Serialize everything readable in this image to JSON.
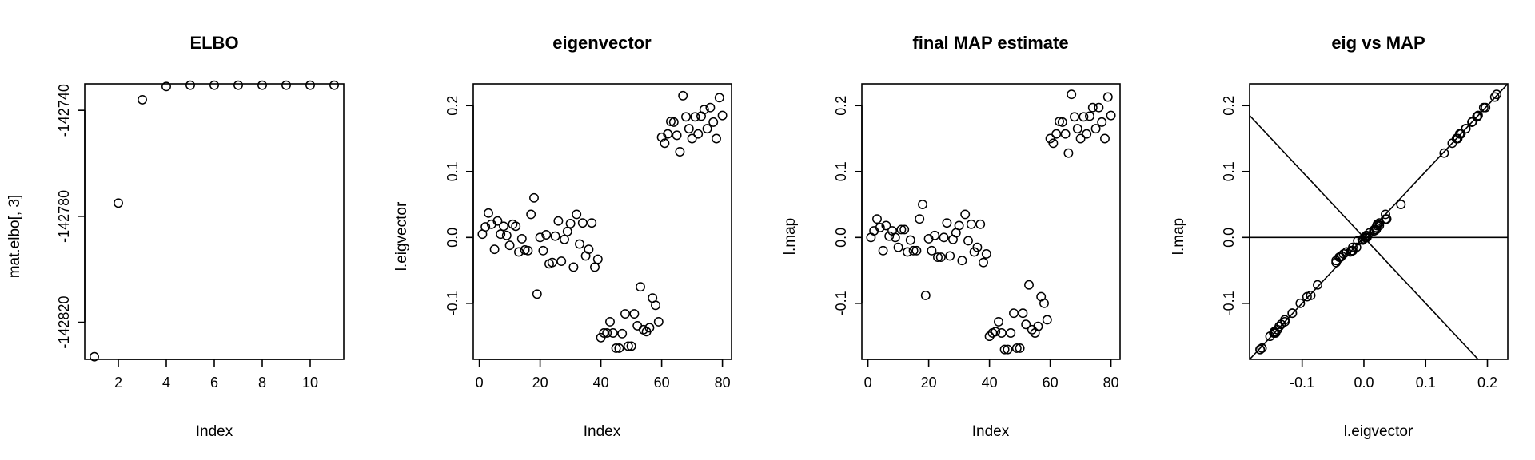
{
  "chart_data": [
    {
      "type": "scatter",
      "title": "ELBO",
      "xlabel": "Index",
      "ylabel": "mat.elbo[, 3]",
      "xlim": [
        0.6,
        11.4
      ],
      "ylim": [
        -142834,
        -142730
      ],
      "xticks": [
        2,
        4,
        6,
        8,
        10
      ],
      "xtick_labels": [
        "2",
        "4",
        "6",
        "8",
        "10"
      ],
      "yticks": [
        -142820,
        -142780,
        -142740
      ],
      "ytick_labels": [
        "-142820",
        "-142780",
        "-142740"
      ],
      "x": [
        1,
        2,
        3,
        4,
        5,
        6,
        7,
        8,
        9,
        10,
        11
      ],
      "y": [
        -142833,
        -142775,
        -142736,
        -142731,
        -142730.5,
        -142730.5,
        -142730.5,
        -142730.5,
        -142730.5,
        -142730.5,
        -142730.5
      ]
    },
    {
      "type": "scatter",
      "title": "eigenvector",
      "xlabel": "Index",
      "ylabel": "l.eigvector",
      "xlim": [
        -2,
        83
      ],
      "ylim": [
        -0.185,
        0.233
      ],
      "xticks": [
        0,
        20,
        40,
        60,
        80
      ],
      "xtick_labels": [
        "0",
        "20",
        "40",
        "60",
        "80"
      ],
      "yticks": [
        -0.1,
        0.0,
        0.1,
        0.2
      ],
      "ytick_labels": [
        "-0.1",
        "0.0",
        "0.1",
        "0.2"
      ],
      "x": [
        1,
        2,
        3,
        4,
        5,
        6,
        7,
        8,
        9,
        10,
        11,
        12,
        13,
        14,
        15,
        16,
        17,
        18,
        19,
        20,
        21,
        22,
        23,
        24,
        25,
        26,
        27,
        28,
        29,
        30,
        31,
        32,
        33,
        34,
        35,
        36,
        37,
        38,
        39,
        40,
        41,
        42,
        43,
        44,
        45,
        46,
        47,
        48,
        49,
        50,
        51,
        52,
        53,
        54,
        55,
        56,
        57,
        58,
        59,
        60,
        61,
        62,
        63,
        64,
        65,
        66,
        67,
        68,
        69,
        70,
        71,
        72,
        73,
        74,
        75,
        76,
        77,
        78,
        79,
        80
      ],
      "y": [
        0.005,
        0.016,
        0.037,
        0.02,
        -0.018,
        0.025,
        0.005,
        0.017,
        0.003,
        -0.012,
        0.02,
        0.017,
        -0.022,
        -0.002,
        -0.019,
        -0.02,
        0.035,
        0.06,
        -0.086,
        0.0,
        -0.02,
        0.004,
        -0.04,
        -0.038,
        0.002,
        0.025,
        -0.036,
        -0.003,
        0.009,
        0.021,
        -0.045,
        0.035,
        -0.01,
        0.022,
        -0.028,
        -0.018,
        0.022,
        -0.045,
        -0.033,
        -0.152,
        -0.145,
        -0.145,
        -0.128,
        -0.145,
        -0.168,
        -0.168,
        -0.146,
        -0.116,
        -0.165,
        -0.165,
        -0.116,
        -0.134,
        -0.075,
        -0.14,
        -0.143,
        -0.137,
        -0.092,
        -0.103,
        -0.128,
        0.152,
        0.143,
        0.157,
        0.176,
        0.175,
        0.155,
        0.13,
        0.215,
        0.183,
        0.165,
        0.15,
        0.183,
        0.157,
        0.184,
        0.194,
        0.165,
        0.197,
        0.175,
        0.15,
        0.212,
        0.185
      ]
    },
    {
      "type": "scatter",
      "title": "final MAP estimate",
      "xlabel": "Index",
      "ylabel": "l.map",
      "xlim": [
        -2,
        83
      ],
      "ylim": [
        -0.185,
        0.233
      ],
      "xticks": [
        0,
        20,
        40,
        60,
        80
      ],
      "xtick_labels": [
        "0",
        "20",
        "40",
        "60",
        "80"
      ],
      "yticks": [
        -0.1,
        0.0,
        0.1,
        0.2
      ],
      "ytick_labels": [
        "-0.1",
        "0.0",
        "0.1",
        "0.2"
      ],
      "x": [
        1,
        2,
        3,
        4,
        5,
        6,
        7,
        8,
        9,
        10,
        11,
        12,
        13,
        14,
        15,
        16,
        17,
        18,
        19,
        20,
        21,
        22,
        23,
        24,
        25,
        26,
        27,
        28,
        29,
        30,
        31,
        32,
        33,
        34,
        35,
        36,
        37,
        38,
        39,
        40,
        41,
        42,
        43,
        44,
        45,
        46,
        47,
        48,
        49,
        50,
        51,
        52,
        53,
        54,
        55,
        56,
        57,
        58,
        59,
        60,
        61,
        62,
        63,
        64,
        65,
        66,
        67,
        68,
        69,
        70,
        71,
        72,
        73,
        74,
        75,
        76,
        77,
        78,
        79,
        80
      ],
      "y": [
        0.0,
        0.01,
        0.028,
        0.015,
        -0.02,
        0.018,
        0.002,
        0.01,
        0.0,
        -0.015,
        0.012,
        0.012,
        -0.022,
        -0.004,
        -0.02,
        -0.02,
        0.028,
        0.05,
        -0.088,
        -0.002,
        -0.02,
        0.003,
        -0.03,
        -0.03,
        0.0,
        0.022,
        -0.028,
        -0.003,
        0.007,
        0.018,
        -0.035,
        0.035,
        -0.005,
        0.02,
        -0.022,
        -0.015,
        0.02,
        -0.038,
        -0.025,
        -0.15,
        -0.145,
        -0.143,
        -0.128,
        -0.145,
        -0.17,
        -0.17,
        -0.145,
        -0.115,
        -0.168,
        -0.168,
        -0.115,
        -0.132,
        -0.072,
        -0.14,
        -0.145,
        -0.135,
        -0.09,
        -0.1,
        -0.125,
        0.15,
        0.143,
        0.157,
        0.176,
        0.175,
        0.157,
        0.128,
        0.217,
        0.183,
        0.165,
        0.15,
        0.183,
        0.157,
        0.184,
        0.197,
        0.165,
        0.197,
        0.175,
        0.15,
        0.213,
        0.185
      ]
    },
    {
      "type": "scatter",
      "title": "eig vs MAP",
      "xlabel": "l.eigvector",
      "ylabel": "l.map",
      "xlim": [
        -0.185,
        0.233
      ],
      "ylim": [
        -0.185,
        0.233
      ],
      "xticks": [
        -0.1,
        0.0,
        0.1,
        0.2
      ],
      "xtick_labels": [
        "-0.1",
        "0.0",
        "0.1",
        "0.2"
      ],
      "yticks": [
        -0.1,
        0.0,
        0.1,
        0.2
      ],
      "ytick_labels": [
        "-0.1",
        "0.0",
        "0.1",
        "0.2"
      ],
      "x": [
        0.005,
        0.016,
        0.037,
        0.02,
        -0.018,
        0.025,
        0.005,
        0.017,
        0.003,
        -0.012,
        0.02,
        0.017,
        -0.022,
        -0.002,
        -0.019,
        -0.02,
        0.035,
        0.06,
        -0.086,
        0.0,
        -0.02,
        0.004,
        -0.04,
        -0.038,
        0.002,
        0.025,
        -0.036,
        -0.003,
        0.009,
        0.021,
        -0.045,
        0.035,
        -0.01,
        0.022,
        -0.028,
        -0.018,
        0.022,
        -0.045,
        -0.033,
        -0.152,
        -0.145,
        -0.145,
        -0.128,
        -0.145,
        -0.168,
        -0.168,
        -0.146,
        -0.116,
        -0.165,
        -0.165,
        -0.116,
        -0.134,
        -0.075,
        -0.14,
        -0.143,
        -0.137,
        -0.092,
        -0.103,
        -0.128,
        0.152,
        0.143,
        0.157,
        0.176,
        0.175,
        0.155,
        0.13,
        0.215,
        0.183,
        0.165,
        0.15,
        0.183,
        0.157,
        0.184,
        0.194,
        0.165,
        0.197,
        0.175,
        0.15,
        0.212,
        0.185
      ],
      "y": [
        0.0,
        0.01,
        0.028,
        0.015,
        -0.02,
        0.018,
        0.002,
        0.01,
        0.0,
        -0.015,
        0.012,
        0.012,
        -0.022,
        -0.004,
        -0.02,
        -0.02,
        0.028,
        0.05,
        -0.088,
        -0.002,
        -0.02,
        0.003,
        -0.03,
        -0.03,
        0.0,
        0.022,
        -0.028,
        -0.003,
        0.007,
        0.018,
        -0.035,
        0.035,
        -0.005,
        0.02,
        -0.022,
        -0.015,
        0.02,
        -0.038,
        -0.025,
        -0.15,
        -0.145,
        -0.143,
        -0.128,
        -0.145,
        -0.17,
        -0.17,
        -0.145,
        -0.115,
        -0.168,
        -0.168,
        -0.115,
        -0.132,
        -0.072,
        -0.14,
        -0.145,
        -0.135,
        -0.09,
        -0.1,
        -0.125,
        0.15,
        0.143,
        0.157,
        0.176,
        0.175,
        0.157,
        0.128,
        0.217,
        0.183,
        0.165,
        0.15,
        0.183,
        0.157,
        0.184,
        0.197,
        0.165,
        0.197,
        0.175,
        0.15,
        0.213,
        0.185
      ],
      "reference_lines": [
        {
          "kind": "abline",
          "intercept": 0,
          "slope": 1
        },
        {
          "kind": "abline",
          "intercept": 0,
          "slope": -1
        },
        {
          "kind": "hline",
          "y": 0
        }
      ]
    }
  ]
}
